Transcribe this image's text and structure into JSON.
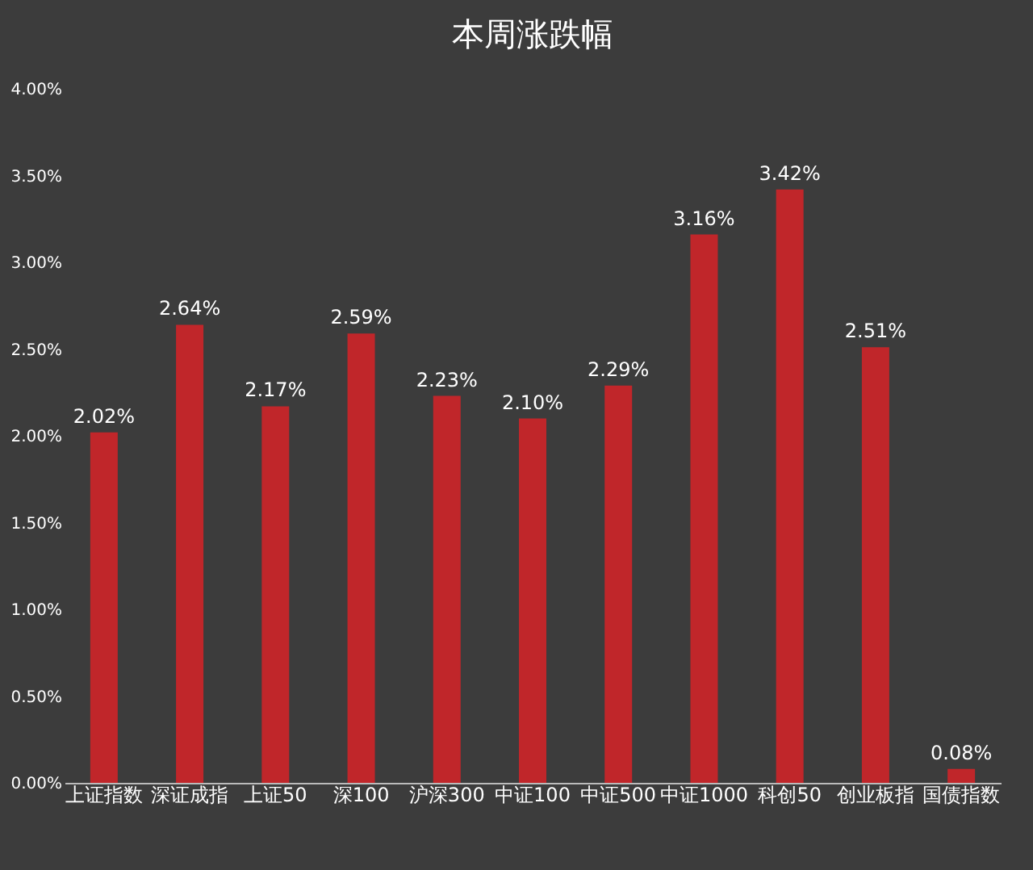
{
  "chart_data": {
    "type": "bar",
    "title": "本周涨跌幅",
    "categories": [
      "上证指数",
      "深证成指",
      "上证50",
      "深100",
      "沪深300",
      "中证100",
      "中证500",
      "中证1000",
      "科创50",
      "创业板指",
      "国债指数"
    ],
    "values": [
      2.02,
      2.64,
      2.17,
      2.59,
      2.23,
      2.1,
      2.29,
      3.16,
      3.42,
      2.51,
      0.08
    ],
    "value_labels": [
      "2.02%",
      "2.64%",
      "2.17%",
      "2.59%",
      "2.23%",
      "2.10%",
      "2.29%",
      "3.16%",
      "3.42%",
      "2.51%",
      "0.08%"
    ],
    "color": "#c0262a",
    "ylim": [
      0,
      4
    ],
    "yticks": [
      {
        "value": 0,
        "label": "0.00%"
      },
      {
        "value": 0.5,
        "label": "0.50%"
      },
      {
        "value": 1,
        "label": "1.00%"
      },
      {
        "value": 1.5,
        "label": "1.50%"
      },
      {
        "value": 2,
        "label": "2.00%"
      },
      {
        "value": 2.5,
        "label": "2.50%"
      },
      {
        "value": 3,
        "label": "3.00%"
      },
      {
        "value": 3.5,
        "label": "3.50%"
      },
      {
        "value": 4,
        "label": "4.00%"
      }
    ],
    "grid": false
  }
}
